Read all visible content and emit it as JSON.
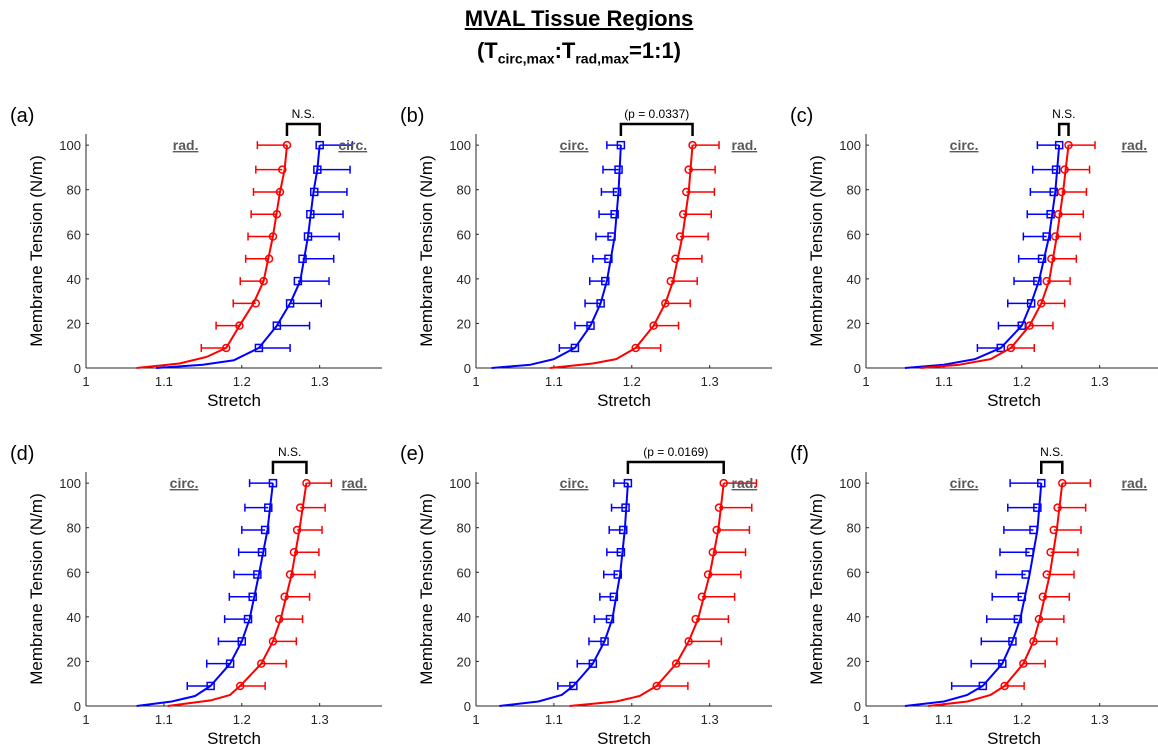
{
  "figure": {
    "title": "MVAL Tissue Regions",
    "subtitle": {
      "open": "(T",
      "sub1": "circ,max",
      "colon": ":T",
      "sub2": "rad,max",
      "close": "=1:1)"
    }
  },
  "colors": {
    "circ": "#0000ff",
    "rad": "#ff0000",
    "bracket": "#000000",
    "label": "#595959"
  },
  "chart_data": [
    {
      "panel": "(a)",
      "type": "line",
      "xlabel": "Stretch",
      "ylabel": "Membrane Tension (N/m)",
      "xlim": [
        1,
        1.38
      ],
      "ylim": [
        0,
        105
      ],
      "xticks": [
        "1",
        "1.1",
        "1.2",
        "1.3"
      ],
      "yticks": [
        "0",
        "20",
        "40",
        "60",
        "80",
        "100"
      ],
      "bracket": {
        "label": "N.S.",
        "x1": 1.258,
        "x2": 1.3
      },
      "series_labels": [
        {
          "text": "rad.",
          "side": "left"
        },
        {
          "text": "circ.",
          "side": "right"
        }
      ],
      "series": [
        {
          "key": "rad",
          "marker": "circle",
          "curve_x": [
            1.065,
            1.12,
            1.155,
            1.18,
            1.197,
            1.215,
            1.228,
            1.24,
            1.249,
            1.255,
            1.258
          ],
          "curve_y": [
            0,
            2,
            5,
            9,
            19,
            29,
            39,
            59,
            79,
            89,
            100
          ],
          "x": [
            1.18,
            1.197,
            1.218,
            1.228,
            1.235,
            1.24,
            1.245,
            1.249,
            1.252,
            1.258
          ],
          "y": [
            9,
            19,
            29,
            39,
            49,
            59,
            69,
            79,
            89,
            100
          ],
          "err": [
            0.032,
            0.03,
            0.029,
            0.03,
            0.03,
            0.032,
            0.033,
            0.034,
            0.034,
            0.038
          ]
        },
        {
          "key": "circ",
          "marker": "square",
          "curve_x": [
            1.09,
            1.15,
            1.19,
            1.222,
            1.245,
            1.262,
            1.275,
            1.285,
            1.292,
            1.297,
            1.3
          ],
          "curve_y": [
            0,
            1.5,
            3.5,
            9,
            19,
            29,
            39,
            59,
            79,
            89,
            100
          ],
          "x": [
            1.222,
            1.245,
            1.262,
            1.272,
            1.278,
            1.285,
            1.288,
            1.293,
            1.297,
            1.3
          ],
          "y": [
            9,
            19,
            29,
            39,
            49,
            59,
            69,
            79,
            89,
            100
          ],
          "err": [
            0.04,
            0.042,
            0.04,
            0.04,
            0.04,
            0.04,
            0.042,
            0.042,
            0.042,
            0.042
          ]
        }
      ]
    },
    {
      "panel": "(b)",
      "type": "line",
      "xlabel": "Stretch",
      "ylabel": "Membrane Tension (N/m)",
      "xlim": [
        1,
        1.38
      ],
      "ylim": [
        0,
        105
      ],
      "xticks": [
        "1",
        "1.1",
        "1.2",
        "1.3"
      ],
      "yticks": [
        "0",
        "20",
        "40",
        "60",
        "80",
        "100"
      ],
      "bracket": {
        "label": "(p = 0.0337)",
        "x1": 1.186,
        "x2": 1.278
      },
      "series_labels": [
        {
          "text": "circ.",
          "side": "left"
        },
        {
          "text": "rad.",
          "side": "right"
        }
      ],
      "series": [
        {
          "key": "circ",
          "marker": "square",
          "curve_x": [
            1.02,
            1.07,
            1.1,
            1.127,
            1.147,
            1.16,
            1.168,
            1.178,
            1.183,
            1.186
          ],
          "curve_y": [
            0,
            1.5,
            4,
            9,
            19,
            29,
            39,
            59,
            79,
            100
          ],
          "x": [
            1.127,
            1.147,
            1.16,
            1.166,
            1.17,
            1.174,
            1.178,
            1.181,
            1.183,
            1.186
          ],
          "y": [
            9,
            19,
            29,
            39,
            49,
            59,
            69,
            79,
            89,
            100
          ],
          "err": [
            0.02,
            0.02,
            0.02,
            0.02,
            0.02,
            0.02,
            0.02,
            0.02,
            0.02,
            0.018
          ]
        },
        {
          "key": "rad",
          "marker": "circle",
          "curve_x": [
            1.095,
            1.15,
            1.18,
            1.205,
            1.228,
            1.243,
            1.253,
            1.265,
            1.273,
            1.278
          ],
          "curve_y": [
            0,
            2,
            4,
            9,
            19,
            29,
            39,
            59,
            79,
            100
          ],
          "x": [
            1.205,
            1.228,
            1.243,
            1.25,
            1.256,
            1.262,
            1.266,
            1.27,
            1.273,
            1.278
          ],
          "y": [
            9,
            19,
            29,
            39,
            49,
            59,
            69,
            79,
            89,
            100
          ],
          "err": [
            0.032,
            0.032,
            0.032,
            0.034,
            0.034,
            0.036,
            0.036,
            0.036,
            0.034,
            0.034
          ]
        }
      ]
    },
    {
      "panel": "(c)",
      "type": "line",
      "xlabel": "Stretch",
      "ylabel": "Membrane Tension (N/m)",
      "xlim": [
        1,
        1.38
      ],
      "ylim": [
        0,
        105
      ],
      "xticks": [
        "1",
        "1.1",
        "1.2",
        "1.3"
      ],
      "yticks": [
        "0",
        "20",
        "40",
        "60",
        "80",
        "100"
      ],
      "bracket": {
        "label": "N.S.",
        "x1": 1.248,
        "x2": 1.26
      },
      "series_labels": [
        {
          "text": "circ.",
          "side": "left"
        },
        {
          "text": "rad.",
          "side": "right"
        }
      ],
      "series": [
        {
          "key": "circ",
          "marker": "square",
          "curve_x": [
            1.05,
            1.1,
            1.14,
            1.173,
            1.2,
            1.212,
            1.222,
            1.235,
            1.243,
            1.248
          ],
          "curve_y": [
            0,
            1.5,
            4,
            9,
            19,
            29,
            39,
            59,
            79,
            100
          ],
          "x": [
            1.173,
            1.2,
            1.212,
            1.22,
            1.226,
            1.232,
            1.237,
            1.241,
            1.244,
            1.248
          ],
          "y": [
            9,
            19,
            29,
            39,
            49,
            59,
            69,
            79,
            89,
            100
          ],
          "err": [
            0.03,
            0.03,
            0.03,
            0.03,
            0.03,
            0.03,
            0.03,
            0.03,
            0.03,
            0.028
          ]
        },
        {
          "key": "rad",
          "marker": "circle",
          "curve_x": [
            1.07,
            1.12,
            1.16,
            1.186,
            1.21,
            1.225,
            1.235,
            1.245,
            1.253,
            1.26
          ],
          "curve_y": [
            0,
            1.5,
            4,
            9,
            19,
            29,
            39,
            59,
            79,
            100
          ],
          "x": [
            1.186,
            1.21,
            1.225,
            1.232,
            1.238,
            1.243,
            1.247,
            1.251,
            1.255,
            1.26
          ],
          "y": [
            9,
            19,
            29,
            39,
            49,
            59,
            69,
            79,
            89,
            100
          ],
          "err": [
            0.03,
            0.03,
            0.03,
            0.03,
            0.032,
            0.032,
            0.032,
            0.032,
            0.032,
            0.034
          ]
        }
      ]
    },
    {
      "panel": "(d)",
      "type": "line",
      "xlabel": "Stretch",
      "ylabel": "Membrane Tension (N/m)",
      "xlim": [
        1,
        1.38
      ],
      "ylim": [
        0,
        105
      ],
      "xticks": [
        "1",
        "1.1",
        "1.2",
        "1.3"
      ],
      "yticks": [
        "0",
        "20",
        "40",
        "60",
        "80",
        "100"
      ],
      "bracket": {
        "label": "N.S.",
        "x1": 1.24,
        "x2": 1.283
      },
      "series_labels": [
        {
          "text": "circ.",
          "side": "left"
        },
        {
          "text": "rad.",
          "side": "right"
        }
      ],
      "series": [
        {
          "key": "circ",
          "marker": "square",
          "curve_x": [
            1.065,
            1.11,
            1.14,
            1.16,
            1.185,
            1.2,
            1.21,
            1.222,
            1.233,
            1.24
          ],
          "curve_y": [
            0,
            2,
            4.5,
            9,
            19,
            29,
            39,
            59,
            79,
            100
          ],
          "x": [
            1.16,
            1.185,
            1.2,
            1.208,
            1.214,
            1.22,
            1.226,
            1.23,
            1.234,
            1.24
          ],
          "y": [
            9,
            19,
            29,
            39,
            49,
            59,
            69,
            79,
            89,
            100
          ],
          "err": [
            0.03,
            0.03,
            0.03,
            0.03,
            0.03,
            0.03,
            0.03,
            0.03,
            0.03,
            0.03
          ]
        },
        {
          "key": "rad",
          "marker": "circle",
          "curve_x": [
            1.105,
            1.16,
            1.185,
            1.198,
            1.225,
            1.24,
            1.25,
            1.264,
            1.274,
            1.283
          ],
          "curve_y": [
            0,
            2.5,
            5,
            9,
            19,
            29,
            39,
            59,
            79,
            100
          ],
          "x": [
            1.198,
            1.225,
            1.24,
            1.248,
            1.255,
            1.262,
            1.267,
            1.271,
            1.275,
            1.283
          ],
          "y": [
            9,
            19,
            29,
            39,
            49,
            59,
            69,
            79,
            89,
            100
          ],
          "err": [
            0.032,
            0.032,
            0.03,
            0.03,
            0.032,
            0.032,
            0.032,
            0.032,
            0.032,
            0.032
          ]
        }
      ]
    },
    {
      "panel": "(e)",
      "type": "line",
      "xlabel": "Stretch",
      "ylabel": "Membrane Tension (N/m)",
      "xlim": [
        1,
        1.38
      ],
      "ylim": [
        0,
        105
      ],
      "xticks": [
        "1",
        "1.1",
        "1.2",
        "1.3"
      ],
      "yticks": [
        "0",
        "20",
        "40",
        "60",
        "80",
        "100"
      ],
      "bracket": {
        "label": "(p = 0.0169)",
        "x1": 1.195,
        "x2": 1.318
      },
      "series_labels": [
        {
          "text": "circ.",
          "side": "left"
        },
        {
          "text": "rad.",
          "side": "right"
        }
      ],
      "series": [
        {
          "key": "circ",
          "marker": "square",
          "curve_x": [
            1.03,
            1.08,
            1.11,
            1.125,
            1.15,
            1.165,
            1.175,
            1.185,
            1.191,
            1.195
          ],
          "curve_y": [
            0,
            2,
            5,
            9,
            19,
            29,
            39,
            59,
            79,
            100
          ],
          "x": [
            1.125,
            1.15,
            1.165,
            1.172,
            1.177,
            1.182,
            1.186,
            1.189,
            1.192,
            1.195
          ],
          "y": [
            9,
            19,
            29,
            39,
            49,
            59,
            69,
            79,
            89,
            100
          ],
          "err": [
            0.02,
            0.02,
            0.02,
            0.02,
            0.018,
            0.018,
            0.018,
            0.018,
            0.018,
            0.018
          ]
        },
        {
          "key": "rad",
          "marker": "circle",
          "curve_x": [
            1.12,
            1.18,
            1.21,
            1.232,
            1.257,
            1.273,
            1.285,
            1.3,
            1.311,
            1.318
          ],
          "curve_y": [
            0,
            2,
            4.5,
            9,
            19,
            29,
            39,
            59,
            79,
            100
          ],
          "x": [
            1.232,
            1.257,
            1.273,
            1.282,
            1.29,
            1.298,
            1.304,
            1.309,
            1.312,
            1.318
          ],
          "y": [
            9,
            19,
            29,
            39,
            49,
            59,
            69,
            79,
            89,
            100
          ],
          "err": [
            0.04,
            0.042,
            0.042,
            0.042,
            0.042,
            0.042,
            0.042,
            0.042,
            0.042,
            0.042
          ]
        }
      ]
    },
    {
      "panel": "(f)",
      "type": "line",
      "xlabel": "Stretch",
      "ylabel": "Membrane Tension (N/m)",
      "xlim": [
        1,
        1.38
      ],
      "ylim": [
        0,
        105
      ],
      "xticks": [
        "1",
        "1.1",
        "1.2",
        "1.3"
      ],
      "yticks": [
        "0",
        "20",
        "40",
        "60",
        "80",
        "100"
      ],
      "bracket": {
        "label": "N.S.",
        "x1": 1.225,
        "x2": 1.252
      },
      "series_labels": [
        {
          "text": "circ.",
          "side": "left"
        },
        {
          "text": "rad.",
          "side": "right"
        }
      ],
      "series": [
        {
          "key": "circ",
          "marker": "square",
          "curve_x": [
            1.05,
            1.1,
            1.13,
            1.15,
            1.175,
            1.188,
            1.198,
            1.21,
            1.22,
            1.225
          ],
          "curve_y": [
            0,
            2,
            5,
            9,
            19,
            29,
            39,
            59,
            79,
            100
          ],
          "x": [
            1.15,
            1.175,
            1.188,
            1.195,
            1.2,
            1.205,
            1.21,
            1.215,
            1.22,
            1.225
          ],
          "y": [
            9,
            19,
            29,
            39,
            49,
            59,
            69,
            79,
            89,
            100
          ],
          "err": [
            0.04,
            0.04,
            0.04,
            0.04,
            0.038,
            0.038,
            0.038,
            0.038,
            0.038,
            0.04
          ]
        },
        {
          "key": "rad",
          "marker": "circle",
          "curve_x": [
            1.08,
            1.13,
            1.16,
            1.178,
            1.202,
            1.215,
            1.223,
            1.236,
            1.245,
            1.252
          ],
          "curve_y": [
            0,
            2,
            5,
            9,
            19,
            29,
            39,
            59,
            79,
            100
          ],
          "x": [
            1.178,
            1.202,
            1.215,
            1.222,
            1.227,
            1.232,
            1.237,
            1.241,
            1.246,
            1.252
          ],
          "y": [
            9,
            19,
            29,
            39,
            49,
            59,
            69,
            79,
            89,
            100
          ],
          "err": [
            0.025,
            0.028,
            0.03,
            0.032,
            0.034,
            0.035,
            0.035,
            0.035,
            0.036,
            0.036
          ]
        }
      ]
    }
  ]
}
